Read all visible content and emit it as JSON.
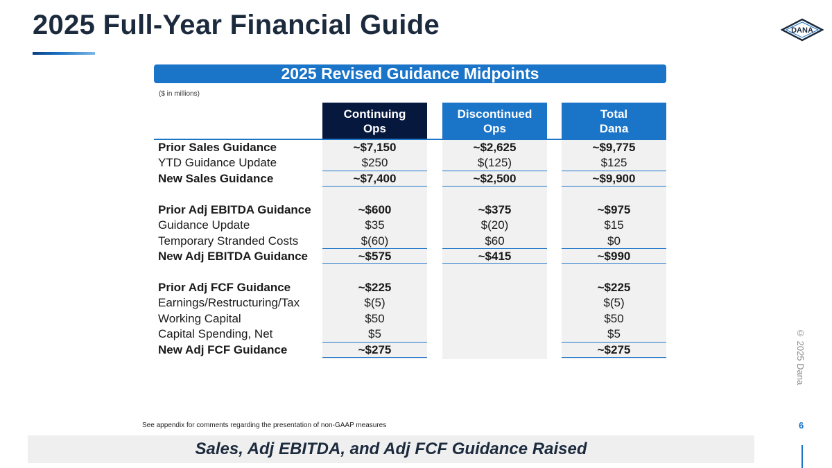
{
  "title": "2025 Full-Year Financial Guide",
  "logo_text": "DANA",
  "banner": "2025 Revised Guidance Midpoints",
  "units_note": "($ in millions)",
  "columns": [
    {
      "line1": "Continuing",
      "line2": "Ops"
    },
    {
      "line1": "Discontinued",
      "line2": "Ops"
    },
    {
      "line1": "Total",
      "line2": "Dana"
    }
  ],
  "rows": [
    {
      "label": "Prior Sales Guidance",
      "c1": "~$7,150",
      "c2": "~$2,625",
      "c3": "~$9,775"
    },
    {
      "label": "YTD Guidance Update",
      "c1": "$250",
      "c2": "$(125)",
      "c3": "$125"
    },
    {
      "label": "New Sales Guidance",
      "c1": "~$7,400",
      "c2": "~$2,500",
      "c3": "~$9,900"
    },
    {
      "label": "Prior Adj EBITDA Guidance",
      "c1": "~$600",
      "c2": "~$375",
      "c3": "~$975"
    },
    {
      "label": "Guidance Update",
      "c1": "$35",
      "c2": "$(20)",
      "c3": "$15"
    },
    {
      "label": "Temporary Stranded Costs",
      "c1": "$(60)",
      "c2": "$60",
      "c3": "$0"
    },
    {
      "label": "New Adj EBITDA Guidance",
      "c1": "~$575",
      "c2": "~$415",
      "c3": "~$990"
    },
    {
      "label": "Prior Adj FCF Guidance",
      "c1": "~$225",
      "c2": "",
      "c3": "~$225"
    },
    {
      "label": "Earnings/Restructuring/Tax",
      "c1": "$(5)",
      "c2": "",
      "c3": "$(5)"
    },
    {
      "label": "Working Capital",
      "c1": "$50",
      "c2": "",
      "c3": "$50"
    },
    {
      "label": "Capital Spending, Net",
      "c1": "$5",
      "c2": "",
      "c3": "$5"
    },
    {
      "label": "New Adj FCF Guidance",
      "c1": "~$275",
      "c2": "",
      "c3": "~$275"
    }
  ],
  "footnote": "See appendix for comments regarding the presentation of non-GAAP measures",
  "page_number": "6",
  "copyright": "© 2025 Dana",
  "takeaway": "Sales, Adj EBITDA, and Adj FCF Guidance Raised",
  "colors": {
    "accent_blue": "#1a74c8",
    "dark_navy": "#06183d",
    "title": "#1c2a3d"
  }
}
